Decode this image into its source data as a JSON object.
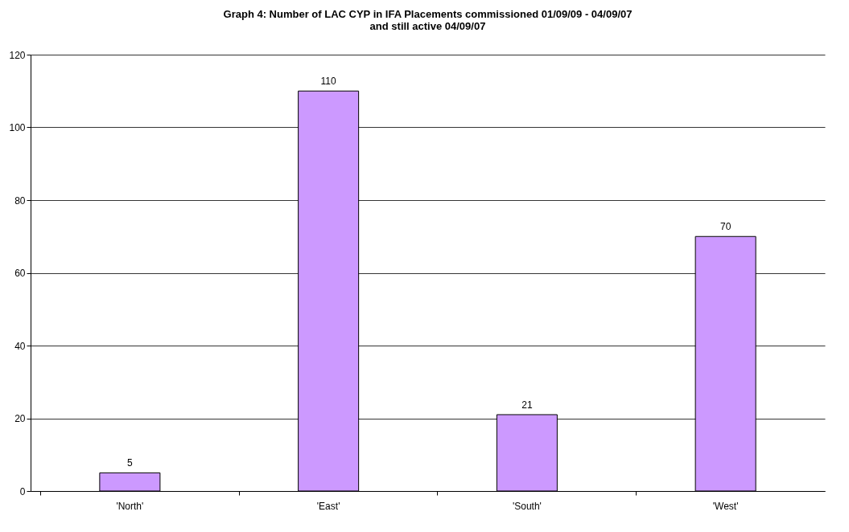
{
  "chart_data": {
    "type": "bar",
    "title": "Graph 4: Number of LAC CYP in IFA Placements commissioned 01/09/09 - 04/09/07\nand still active 04/09/07",
    "categories": [
      "'North'",
      "'East'",
      "'South'",
      "'West'"
    ],
    "values": [
      5,
      110,
      21,
      70
    ],
    "color": "#cc99ff",
    "ylim": [
      0,
      120
    ],
    "yticks": [
      0,
      20,
      40,
      60,
      80,
      100,
      120
    ],
    "grid": "y",
    "data_labels": true
  }
}
